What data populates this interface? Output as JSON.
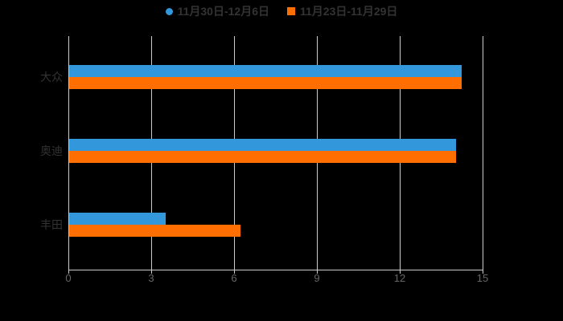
{
  "chart_data": {
    "type": "bar",
    "orientation": "horizontal",
    "title": "",
    "categories": [
      "大众",
      "奥迪",
      "丰田"
    ],
    "series": [
      {
        "name": "11月30日-12月6日",
        "color": "#3398db",
        "legend_marker": "circle",
        "values": [
          14.2,
          14.0,
          3.5
        ]
      },
      {
        "name": "11月23日-11月29日",
        "color": "#ff6e00",
        "legend_marker": "square",
        "values": [
          14.2,
          14.0,
          6.2
        ]
      }
    ],
    "x_axis": {
      "min": 0,
      "max": 15,
      "ticks": [
        0,
        3,
        6,
        9,
        12,
        15
      ]
    },
    "grid": true,
    "legend_position": "top",
    "colors": {
      "background": "#000000",
      "axis_line": "#cccccc",
      "grid_line": "#cccccc",
      "tick_label": "#666666",
      "category_label": "#333333",
      "legend_text": "#333333"
    }
  }
}
